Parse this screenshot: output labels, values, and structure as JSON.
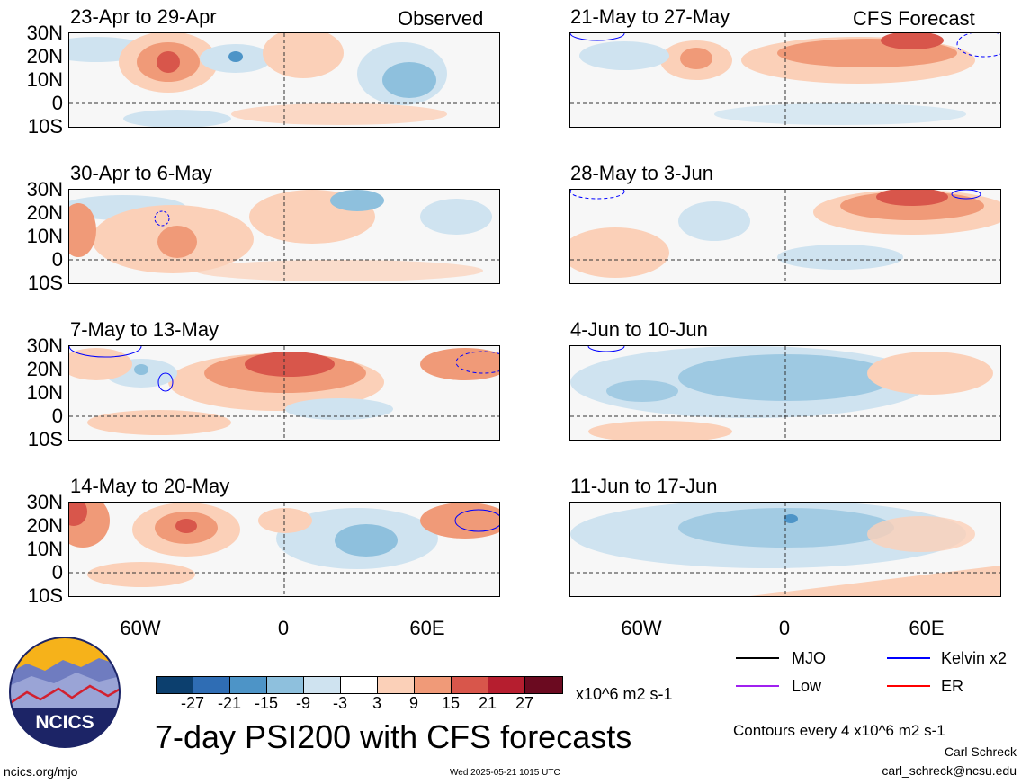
{
  "panels_left": [
    {
      "title": "23-Apr to 29-Apr",
      "tag": "Observed"
    },
    {
      "title": "30-Apr to 6-May",
      "tag": ""
    },
    {
      "title": "7-May to 13-May",
      "tag": ""
    },
    {
      "title": "14-May to 20-May",
      "tag": ""
    }
  ],
  "panels_right": [
    {
      "title": "21-May to 27-May",
      "tag": "CFS Forecast"
    },
    {
      "title": "28-May to 3-Jun",
      "tag": ""
    },
    {
      "title": "4-Jun to 10-Jun",
      "tag": ""
    },
    {
      "title": "11-Jun to 17-Jun",
      "tag": ""
    }
  ],
  "lat_labels": [
    "30N",
    "20N",
    "10N",
    "0",
    "10S"
  ],
  "lon_labels": [
    "60W",
    "0",
    "60E"
  ],
  "colorbar": {
    "ticks": [
      "-27",
      "-21",
      "-15",
      "-9",
      "-3",
      "3",
      "9",
      "15",
      "21",
      "27"
    ],
    "colors": [
      "#0c3f6e",
      "#2f6db4",
      "#4d94c7",
      "#8ec0dd",
      "#cfe3f0",
      "#ffffff",
      "#fbd0b8",
      "#f09a78",
      "#d8564b",
      "#b61e2f",
      "#6b0a20"
    ],
    "units": "x10^6 m2 s-1"
  },
  "main_title": "7-day PSI200 with CFS forecasts",
  "legend": {
    "mjo": "MJO",
    "low": "Low",
    "kelvin": "Kelvin x2",
    "er": "ER",
    "mjo_color": "#000000",
    "low_color": "#a020f0",
    "kelvin_color": "#0000ff",
    "er_color": "#ff0000"
  },
  "contours_note": "Contours every 4 x10^6 m2 s-1",
  "author": "Carl Schreck",
  "email": "carl_schreck@ncsu.edu",
  "site": "ncics.org/mjo",
  "timestamp": "Wed 2025-05-21 1015 UTC",
  "logo_text": "NCICS"
}
